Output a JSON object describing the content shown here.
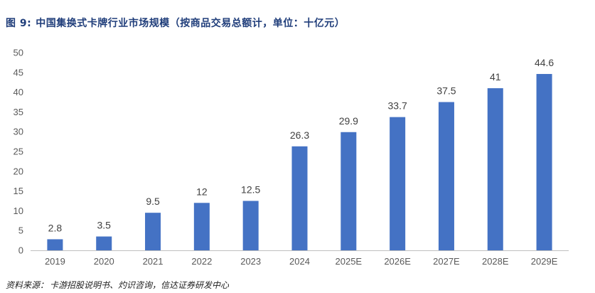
{
  "header": {
    "figure_label": "图 9:",
    "figure_title": "中国集换式卡牌行业市场规模（按商品交易总额计，单位：十亿元）"
  },
  "footer": {
    "source_label": "资料来源：",
    "source_text": "卡游招股说明书、灼识咨询，信达证券研发中心"
  },
  "colors": {
    "bar": "#4472c4",
    "title": "#1f3d7a",
    "tick_text": "#595959",
    "axis": "#bfbfbf"
  },
  "chart_data": {
    "type": "bar",
    "title": "",
    "xlabel": "",
    "ylabel": "",
    "ylim": [
      0,
      50
    ],
    "yticks": [
      0,
      5,
      10,
      15,
      20,
      25,
      30,
      35,
      40,
      45,
      50
    ],
    "grid": false,
    "legend": "none",
    "categories": [
      "2019",
      "2020",
      "2021",
      "2022",
      "2023",
      "2024",
      "2025E",
      "2026E",
      "2027E",
      "2028E",
      "2029E"
    ],
    "values": [
      2.8,
      3.5,
      9.5,
      12,
      12.5,
      26.3,
      29.9,
      33.7,
      37.5,
      41,
      44.6
    ],
    "value_labels": [
      "2.8",
      "3.5",
      "9.5",
      "12",
      "12.5",
      "26.3",
      "29.9",
      "33.7",
      "37.5",
      "41",
      "44.6"
    ]
  }
}
